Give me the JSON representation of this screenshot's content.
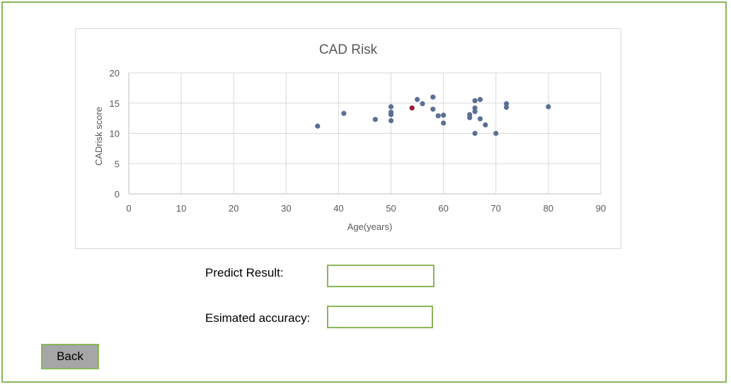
{
  "chart_data": {
    "type": "scatter",
    "title": "CAD Risk",
    "xlabel": "Age(years)",
    "ylabel": "CADrisk score",
    "xlim": [
      0,
      90
    ],
    "ylim": [
      0,
      20
    ],
    "x_ticks": [
      0,
      10,
      20,
      30,
      40,
      50,
      60,
      70,
      80,
      90
    ],
    "y_ticks": [
      0,
      5,
      10,
      15,
      20
    ],
    "grid": true,
    "series": [
      {
        "color": "#5b6f94",
        "points": [
          [
            36,
            11.2
          ],
          [
            41,
            13.3
          ],
          [
            47,
            12.3
          ],
          [
            50,
            14.4
          ],
          [
            50,
            13.5
          ],
          [
            50,
            13.1
          ],
          [
            50,
            12.1
          ],
          [
            55,
            15.6
          ],
          [
            56,
            14.9
          ],
          [
            58,
            16.0
          ],
          [
            58,
            14.0
          ],
          [
            59,
            12.9
          ],
          [
            60,
            13.0
          ],
          [
            60,
            11.7
          ],
          [
            65,
            13.1
          ],
          [
            65,
            12.6
          ],
          [
            66,
            15.4
          ],
          [
            66,
            14.2
          ],
          [
            66,
            13.6
          ],
          [
            66,
            10.0
          ],
          [
            67,
            15.6
          ],
          [
            67,
            12.4
          ],
          [
            68,
            11.4
          ],
          [
            70,
            10.0
          ],
          [
            72,
            14.9
          ],
          [
            72,
            14.3
          ],
          [
            80,
            14.4
          ]
        ]
      },
      {
        "color": "#9b1c3a",
        "points": [
          [
            54,
            14.2
          ]
        ]
      }
    ]
  },
  "form": {
    "predict_label": "Predict Result:",
    "predict_value": "",
    "accuracy_label": "Esimated accuracy:",
    "accuracy_value": ""
  },
  "back_label": "Back"
}
